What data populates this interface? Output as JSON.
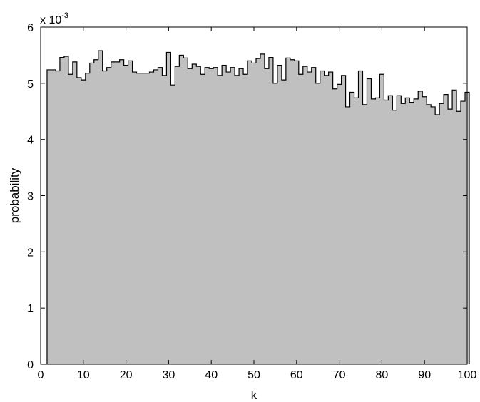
{
  "chart_data": {
    "type": "bar",
    "style": "stepped-histogram",
    "title": "",
    "xlabel": "k",
    "ylabel": "probability",
    "y_scale_label": "x 10",
    "y_scale_exponent": "-3",
    "y_multiplier": 0.001,
    "xlim": [
      0,
      100
    ],
    "ylim": [
      0,
      6
    ],
    "xticks": [
      0,
      10,
      20,
      30,
      40,
      50,
      60,
      70,
      80,
      90,
      100
    ],
    "yticks": [
      0,
      1,
      2,
      3,
      4,
      5,
      6
    ],
    "grid": false,
    "bin_start": 1.5,
    "bin_width": 1,
    "values_scaled": [
      5.24,
      5.24,
      5.22,
      5.46,
      5.48,
      5.16,
      5.38,
      5.1,
      5.06,
      5.18,
      5.36,
      5.42,
      5.58,
      5.22,
      5.28,
      5.38,
      5.38,
      5.42,
      5.32,
      5.4,
      5.2,
      5.18,
      5.18,
      5.18,
      5.2,
      5.24,
      5.28,
      5.14,
      5.55,
      4.97,
      5.3,
      5.5,
      5.45,
      5.26,
      5.34,
      5.3,
      5.16,
      5.28,
      5.26,
      5.28,
      5.14,
      5.32,
      5.2,
      5.28,
      5.14,
      5.26,
      5.16,
      5.4,
      5.36,
      5.44,
      5.52,
      5.26,
      5.46,
      5.0,
      5.32,
      5.06,
      5.45,
      5.42,
      5.4,
      5.16,
      5.3,
      5.2,
      5.28,
      5.0,
      5.22,
      5.14,
      5.2,
      4.9,
      4.98,
      5.14,
      4.58,
      4.84,
      4.74,
      5.22,
      4.62,
      5.08,
      4.72,
      4.74,
      5.16,
      4.7,
      4.78,
      4.52,
      4.78,
      4.64,
      4.74,
      4.66,
      4.72,
      4.86,
      4.76,
      4.62,
      4.58,
      4.44,
      4.64,
      4.8,
      4.54,
      4.88,
      4.5,
      4.68,
      4.84
    ]
  }
}
